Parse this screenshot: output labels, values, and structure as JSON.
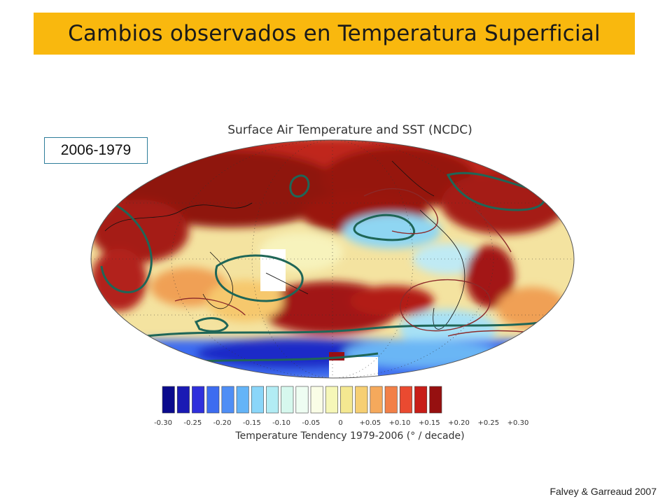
{
  "slide": {
    "title": "Cambios observados en Temperatura Superficial",
    "period_label": "2006-1979",
    "credit": "Falvey & Garreaud  2007"
  },
  "map": {
    "title": "Surface Air Temperature and SST (NCDC)",
    "colorbar_title": "Temperature Tendency 1979-2006 (° / decade)",
    "colorbar": {
      "ticks": [
        "-0.30",
        "-0.25",
        "-0.20",
        "-0.15",
        "-0.10",
        "-0.05",
        "0",
        "+0.05",
        "+0.10",
        "+0.15",
        "+0.20",
        "+0.25",
        "+0.30"
      ],
      "colors": [
        "#0a0a8c",
        "#1a1ab4",
        "#2f2fdc",
        "#3d6cf0",
        "#4f8ef5",
        "#64b4f7",
        "#8ad6f9",
        "#b2ecf4",
        "#d6f8ee",
        "#eefdf2",
        "#fafde6",
        "#f6f7b8",
        "#f4e891",
        "#f6cf73",
        "#f5a95c",
        "#f28048",
        "#ea4a30",
        "#c81d18",
        "#961010"
      ]
    },
    "colors": {
      "ocean_base": "#f5e6a0",
      "warm_strong": "#9c1710",
      "contour_green": "#1f6657",
      "contour_red": "#8c2a2a"
    }
  }
}
